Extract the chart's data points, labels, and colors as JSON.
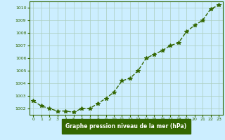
{
  "x": [
    0,
    1,
    2,
    3,
    4,
    5,
    6,
    7,
    8,
    9,
    10,
    11,
    12,
    13,
    14,
    15,
    16,
    17,
    18,
    19,
    20,
    21,
    22,
    23
  ],
  "y": [
    1002.6,
    1002.2,
    1002.0,
    1001.8,
    1001.8,
    1001.7,
    1002.0,
    1002.0,
    1002.4,
    1002.8,
    1003.3,
    1004.2,
    1004.4,
    1005.0,
    1006.0,
    1006.3,
    1006.6,
    1007.0,
    1007.2,
    1008.1,
    1008.6,
    1009.0,
    1009.9,
    1010.2
  ],
  "ylim": [
    1001.5,
    1010.5
  ],
  "yticks": [
    1002,
    1003,
    1004,
    1005,
    1006,
    1007,
    1008,
    1009,
    1010
  ],
  "xlim": [
    -0.5,
    23.5
  ],
  "xticks": [
    0,
    1,
    2,
    3,
    4,
    5,
    6,
    7,
    8,
    9,
    10,
    11,
    12,
    13,
    14,
    15,
    16,
    17,
    18,
    19,
    20,
    21,
    22,
    23
  ],
  "line_color": "#336600",
  "marker_color": "#336600",
  "bg_color": "#cceeff",
  "plot_bg_color": "#cceeff",
  "grid_color": "#aaccbb",
  "xlabel": "Graphe pression niveau de la mer (hPa)",
  "xlabel_color": "#336600",
  "xlabel_bg": "#336600",
  "xlabel_text_color": "#ffffff",
  "tick_color": "#336600",
  "marker": "*",
  "markersize": 4,
  "linewidth": 1.0
}
